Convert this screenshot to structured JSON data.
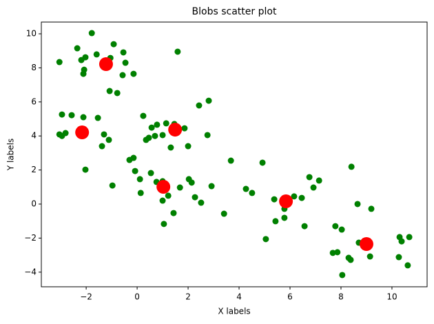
{
  "chart_data": {
    "type": "scatter",
    "title": "Blobs scatter plot",
    "x_label": "X labels",
    "y_label": "Y labels",
    "xlim": [
      -3.76,
      11.38
    ],
    "ylim": [
      -4.86,
      10.69
    ],
    "xticks": [
      {
        "value": -2,
        "label": "−2"
      },
      0,
      2,
      4,
      6,
      8,
      10
    ],
    "yticks": [
      {
        "value": -4,
        "label": "−4"
      },
      {
        "value": -2,
        "label": "−2"
      },
      0,
      2,
      4,
      6,
      8,
      10
    ],
    "grid": false,
    "series": [
      {
        "color": "#008000",
        "x": [
          -3.05,
          -2.35,
          -1.78,
          -1.59,
          -2.19,
          -2.03,
          -2.08,
          -2.11,
          -0.92,
          -0.54,
          -0.46,
          -0.57,
          -0.14,
          -1.05,
          -1.08,
          -0.78,
          -2.95,
          -2.57,
          -2.11,
          -1.54,
          -3.05,
          -2.81,
          -2.95,
          -1.3,
          -1.11,
          -1.38,
          -2.03,
          -0.97,
          0.24,
          0.57,
          0.78,
          1.14,
          1.0,
          0.7,
          0.46,
          0.35,
          1.32,
          1.86,
          1.62,
          1.46,
          2.43,
          2.81,
          2.76,
          2.0,
          1.59,
          -0.3,
          -0.14,
          -0.08,
          0.11,
          0.14,
          0.54,
          0.76,
          1.0,
          1.22,
          1.0,
          1.05,
          1.43,
          1.68,
          2.03,
          2.14,
          2.27,
          2.51,
          2.92,
          3.41,
          3.68,
          4.27,
          4.51,
          4.92,
          5.05,
          5.38,
          5.43,
          5.78,
          5.78,
          6.16,
          6.46,
          6.57,
          6.76,
          6.92,
          7.14,
          7.68,
          7.86,
          7.78,
          8.03,
          8.05,
          8.3,
          8.38,
          8.41,
          8.65,
          8.7,
          9.14,
          9.19,
          10.3,
          10.38,
          10.27,
          10.62,
          10.68
        ],
        "y": [
          8.34,
          9.15,
          10.04,
          8.79,
          8.46,
          8.62,
          7.89,
          7.65,
          9.39,
          8.91,
          8.3,
          7.57,
          7.65,
          8.58,
          6.64,
          6.52,
          5.26,
          5.22,
          5.1,
          5.06,
          4.09,
          4.17,
          4.0,
          4.09,
          3.77,
          3.4,
          2.02,
          1.09,
          5.18,
          4.49,
          4.66,
          4.74,
          4.05,
          4.0,
          3.89,
          3.77,
          3.32,
          4.45,
          4.45,
          4.7,
          5.79,
          6.07,
          4.05,
          3.4,
          8.95,
          2.59,
          2.71,
          1.94,
          1.46,
          0.65,
          1.82,
          1.3,
          1.34,
          0.49,
          0.2,
          -1.17,
          -0.53,
          0.97,
          1.46,
          1.26,
          0.4,
          0.08,
          1.05,
          -0.57,
          2.55,
          0.89,
          0.65,
          2.43,
          -2.06,
          0.28,
          -1.01,
          -0.28,
          -0.81,
          0.45,
          0.36,
          -1.3,
          1.58,
          0.97,
          1.38,
          -2.87,
          -2.83,
          -1.3,
          -1.5,
          -4.17,
          -3.16,
          -3.28,
          2.19,
          0,
          -2.27,
          -3.08,
          -0.28,
          -1.94,
          -2.19,
          -3.12,
          -3.6,
          -1.94
        ]
      },
      {
        "color": "#ff0000",
        "x": [
          -1.22,
          -2.16,
          1.49,
          1.03,
          5.84,
          9.0
        ],
        "y": [
          8.22,
          4.21,
          4.37,
          1.01,
          0.16,
          -2.35
        ]
      }
    ]
  }
}
